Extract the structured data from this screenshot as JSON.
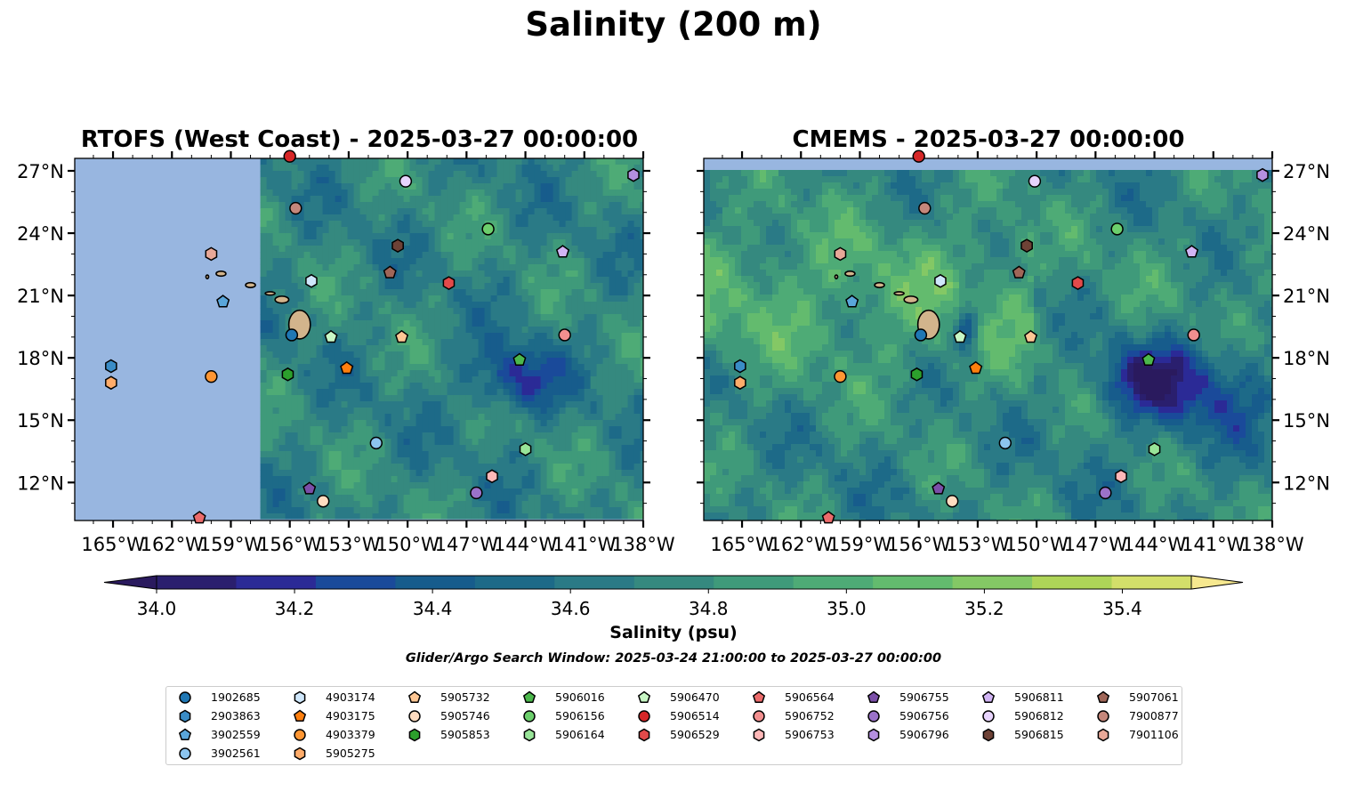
{
  "title": "Salinity (200 m)",
  "panels": [
    {
      "title": "RTOFS (West Coast) - 2025-03-27 00:00:00",
      "y_axis_side": "left",
      "data_west_edge_lon": -157.5,
      "missing_top": false
    },
    {
      "title": "CMEMS - 2025-03-27 00:00:00",
      "y_axis_side": "right",
      "data_west_edge_lon": null,
      "missing_top": true
    }
  ],
  "colorbar": {
    "label": "Salinity (psu)",
    "ticks": [
      "34.0",
      "34.2",
      "34.4",
      "34.6",
      "34.8",
      "35.0",
      "35.2",
      "35.4"
    ],
    "min": 34.0,
    "max": 35.4,
    "step": 0.1,
    "extend": "both",
    "colors": [
      "#2a1f6e",
      "#2b2a96",
      "#1a4a9a",
      "#175c8c",
      "#1d6a88",
      "#2a7a86",
      "#35897f",
      "#3f9a7a",
      "#4eab76",
      "#63bb6e",
      "#84c865",
      "#aed458",
      "#d3df6a"
    ],
    "under_color": "#2a1a5e",
    "over_color": "#f6e88f"
  },
  "subtitle": "Glider/Argo Search Window: 2025-03-24 21:00:00 to 2025-03-27 00:00:00",
  "chart_data": {
    "type": "scatter",
    "title": "Salinity (200 m)",
    "xlabel": "",
    "ylabel": "",
    "xlim": [
      -166.95,
      -138.0
    ],
    "ylim": [
      10.17,
      27.6
    ],
    "x_ticks": [
      "165°W",
      "162°W",
      "159°W",
      "156°W",
      "153°W",
      "150°W",
      "147°W",
      "144°W",
      "141°W",
      "138°W"
    ],
    "x_tick_values": [
      -165,
      -162,
      -159,
      -156,
      -153,
      -150,
      -147,
      -144,
      -141,
      -138
    ],
    "y_ticks": [
      "12°N",
      "15°N",
      "18°N",
      "21°N",
      "24°N",
      "27°N"
    ],
    "y_tick_values": [
      12,
      15,
      18,
      21,
      24,
      27
    ],
    "grid": false,
    "legend_position": "bottom",
    "background": "salinity contour field (psu)",
    "series": [
      {
        "name": "1902685",
        "marker": "circle",
        "color": "#1f77b4",
        "lon": -155.9,
        "lat": 19.1
      },
      {
        "name": "2903863",
        "marker": "hexagon",
        "color": "#3a8cc6",
        "lon": -165.1,
        "lat": 17.6
      },
      {
        "name": "3902559",
        "marker": "pentagon",
        "color": "#5aa6da",
        "lon": -159.4,
        "lat": 20.7
      },
      {
        "name": "3902561",
        "marker": "circle",
        "color": "#8cc4ee",
        "lon": -151.6,
        "lat": 13.9
      },
      {
        "name": "4903174",
        "marker": "hexagon",
        "color": "#cfe7fb",
        "lon": -154.9,
        "lat": 21.7
      },
      {
        "name": "4903175",
        "marker": "pentagon",
        "color": "#ff7f0e",
        "lon": -153.1,
        "lat": 17.5
      },
      {
        "name": "4903379",
        "marker": "circle",
        "color": "#ff9633",
        "lon": -160.0,
        "lat": 17.1
      },
      {
        "name": "5905275",
        "marker": "hexagon",
        "color": "#ffac6a",
        "lon": -165.1,
        "lat": 16.8
      },
      {
        "name": "5905732",
        "marker": "pentagon",
        "color": "#ffc794",
        "lon": -150.3,
        "lat": 19.0
      },
      {
        "name": "5905746",
        "marker": "circle",
        "color": "#ffdcc0",
        "lon": -154.3,
        "lat": 11.1
      },
      {
        "name": "5905853",
        "marker": "hexagon",
        "color": "#2ca02c",
        "lon": -156.1,
        "lat": 17.2
      },
      {
        "name": "5906016",
        "marker": "pentagon",
        "color": "#4cb84c",
        "lon": -144.3,
        "lat": 17.9
      },
      {
        "name": "5906156",
        "marker": "circle",
        "color": "#6ccf6c",
        "lon": -145.9,
        "lat": 24.2
      },
      {
        "name": "5906164",
        "marker": "hexagon",
        "color": "#98e498",
        "lon": -144.0,
        "lat": 13.6
      },
      {
        "name": "5906470",
        "marker": "pentagon",
        "color": "#c8f7c5",
        "lon": -153.9,
        "lat": 19.0
      },
      {
        "name": "5906514",
        "marker": "circle",
        "color": "#d62728",
        "lon": -156.0,
        "lat": 27.7
      },
      {
        "name": "5906529",
        "marker": "hexagon",
        "color": "#e24a4a",
        "lon": -147.9,
        "lat": 21.6
      },
      {
        "name": "5906564",
        "marker": "pentagon",
        "color": "#ec6b6b",
        "lon": -160.6,
        "lat": 10.3
      },
      {
        "name": "5906752",
        "marker": "circle",
        "color": "#f28f8f",
        "lon": -142.0,
        "lat": 19.1
      },
      {
        "name": "5906753",
        "marker": "hexagon",
        "color": "#ffb8b8",
        "lon": -145.7,
        "lat": 12.3
      },
      {
        "name": "5906755",
        "marker": "pentagon",
        "color": "#7b4fa8",
        "lon": -155.0,
        "lat": 11.7
      },
      {
        "name": "5906756",
        "marker": "circle",
        "color": "#9b72c9",
        "lon": -146.5,
        "lat": 11.5
      },
      {
        "name": "5906796",
        "marker": "hexagon",
        "color": "#b48fe0",
        "lon": -138.5,
        "lat": 26.8
      },
      {
        "name": "5906811",
        "marker": "pentagon",
        "color": "#d2b5f5",
        "lon": -142.1,
        "lat": 23.1
      },
      {
        "name": "5906812",
        "marker": "circle",
        "color": "#e8d4fd",
        "lon": -150.1,
        "lat": 26.5
      },
      {
        "name": "5906815",
        "marker": "hexagon",
        "color": "#6e4236",
        "lon": -150.5,
        "lat": 23.4
      },
      {
        "name": "5907061",
        "marker": "pentagon",
        "color": "#a06658",
        "lon": -150.9,
        "lat": 22.1
      },
      {
        "name": "7900877",
        "marker": "circle",
        "color": "#c5877b",
        "lon": -155.7,
        "lat": 25.2
      },
      {
        "name": "7901106",
        "marker": "hexagon",
        "color": "#e8a898",
        "lon": -160.0,
        "lat": 23.0
      }
    ]
  }
}
